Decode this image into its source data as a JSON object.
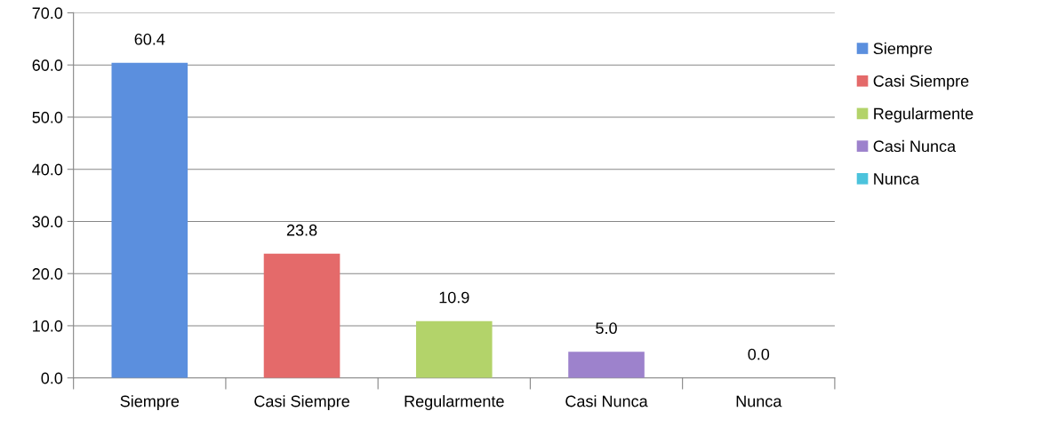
{
  "chart_data": {
    "type": "bar",
    "categories": [
      "Siempre",
      "Casi Siempre",
      "Regularmente",
      "Casi Nunca",
      "Nunca"
    ],
    "series": [
      {
        "name": "Siempre",
        "color": "#5b8fde",
        "values": [
          60.4,
          null,
          null,
          null,
          null
        ],
        "value_labels": [
          "60.4",
          null,
          null,
          null,
          null
        ]
      },
      {
        "name": "Casi Siempre",
        "color": "#e46a6a",
        "values": [
          null,
          23.8,
          null,
          null,
          null
        ],
        "value_labels": [
          null,
          "23.8",
          null,
          null,
          null
        ]
      },
      {
        "name": "Regularmente",
        "color": "#b3d36a",
        "values": [
          null,
          null,
          10.9,
          null,
          null
        ],
        "value_labels": [
          null,
          null,
          "10.9",
          null,
          null
        ]
      },
      {
        "name": "Casi Nunca",
        "color": "#9d82cc",
        "values": [
          null,
          null,
          null,
          5.0,
          null
        ],
        "value_labels": [
          null,
          null,
          null,
          "5.0",
          null
        ]
      },
      {
        "name": "Nunca",
        "color": "#4cc3dc",
        "values": [
          null,
          null,
          null,
          null,
          0.0
        ],
        "value_labels": [
          null,
          null,
          null,
          null,
          "0.0"
        ]
      }
    ],
    "ylim": [
      0,
      70
    ],
    "yticks": [
      {
        "value": 0,
        "label": "0.0"
      },
      {
        "value": 10,
        "label": "10.0"
      },
      {
        "value": 20,
        "label": "20.0"
      },
      {
        "value": 30,
        "label": "30.0"
      },
      {
        "value": 40,
        "label": "40.0"
      },
      {
        "value": 50,
        "label": "50.0"
      },
      {
        "value": 60,
        "label": "60.0"
      },
      {
        "value": 70,
        "label": "70.0"
      }
    ],
    "grid": "y",
    "legend": "right"
  }
}
